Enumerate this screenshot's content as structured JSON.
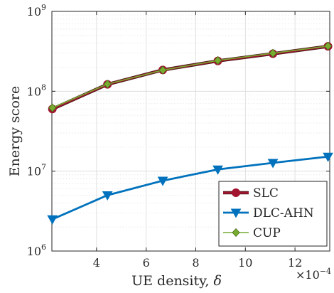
{
  "chart_data": {
    "type": "line",
    "xlabel_text": "UE density, ",
    "xlabel_symbol": "δ",
    "ylabel": "Energy score",
    "x_multiplier_base": "×10",
    "x_multiplier_exp": "−4",
    "xlim": [
      2.2,
      13.4
    ],
    "ylim": [
      1000000,
      1000000000
    ],
    "yscale": "log",
    "grid": true,
    "legend_position": "bottom-right",
    "x_ticks": [
      4,
      6,
      8,
      10,
      12
    ],
    "x_tick_labels": [
      "4",
      "6",
      "8",
      "10",
      "12"
    ],
    "y_ticks": [
      1000000,
      10000000,
      100000000,
      1000000000
    ],
    "y_tick_base": "10",
    "y_tick_exponents": [
      "6",
      "7",
      "8",
      "9"
    ],
    "x": [
      2.22,
      4.44,
      6.67,
      8.89,
      11.11,
      13.33
    ],
    "series": [
      {
        "name": "SLC",
        "color": "#A2142F",
        "marker": "circle",
        "values": [
          60000000,
          122000000,
          185000000,
          240000000,
          295000000,
          365000000
        ]
      },
      {
        "name": "DLC-AHN",
        "color": "#0072BD",
        "marker": "triangle-down",
        "values": [
          2500000,
          5000000,
          7600000,
          10500000,
          12700000,
          15200000
        ]
      },
      {
        "name": "CUP",
        "color": "#77AC30",
        "marker": "diamond",
        "values": [
          62000000,
          123000000,
          184000000,
          243000000,
          300000000,
          368000000
        ]
      }
    ]
  }
}
